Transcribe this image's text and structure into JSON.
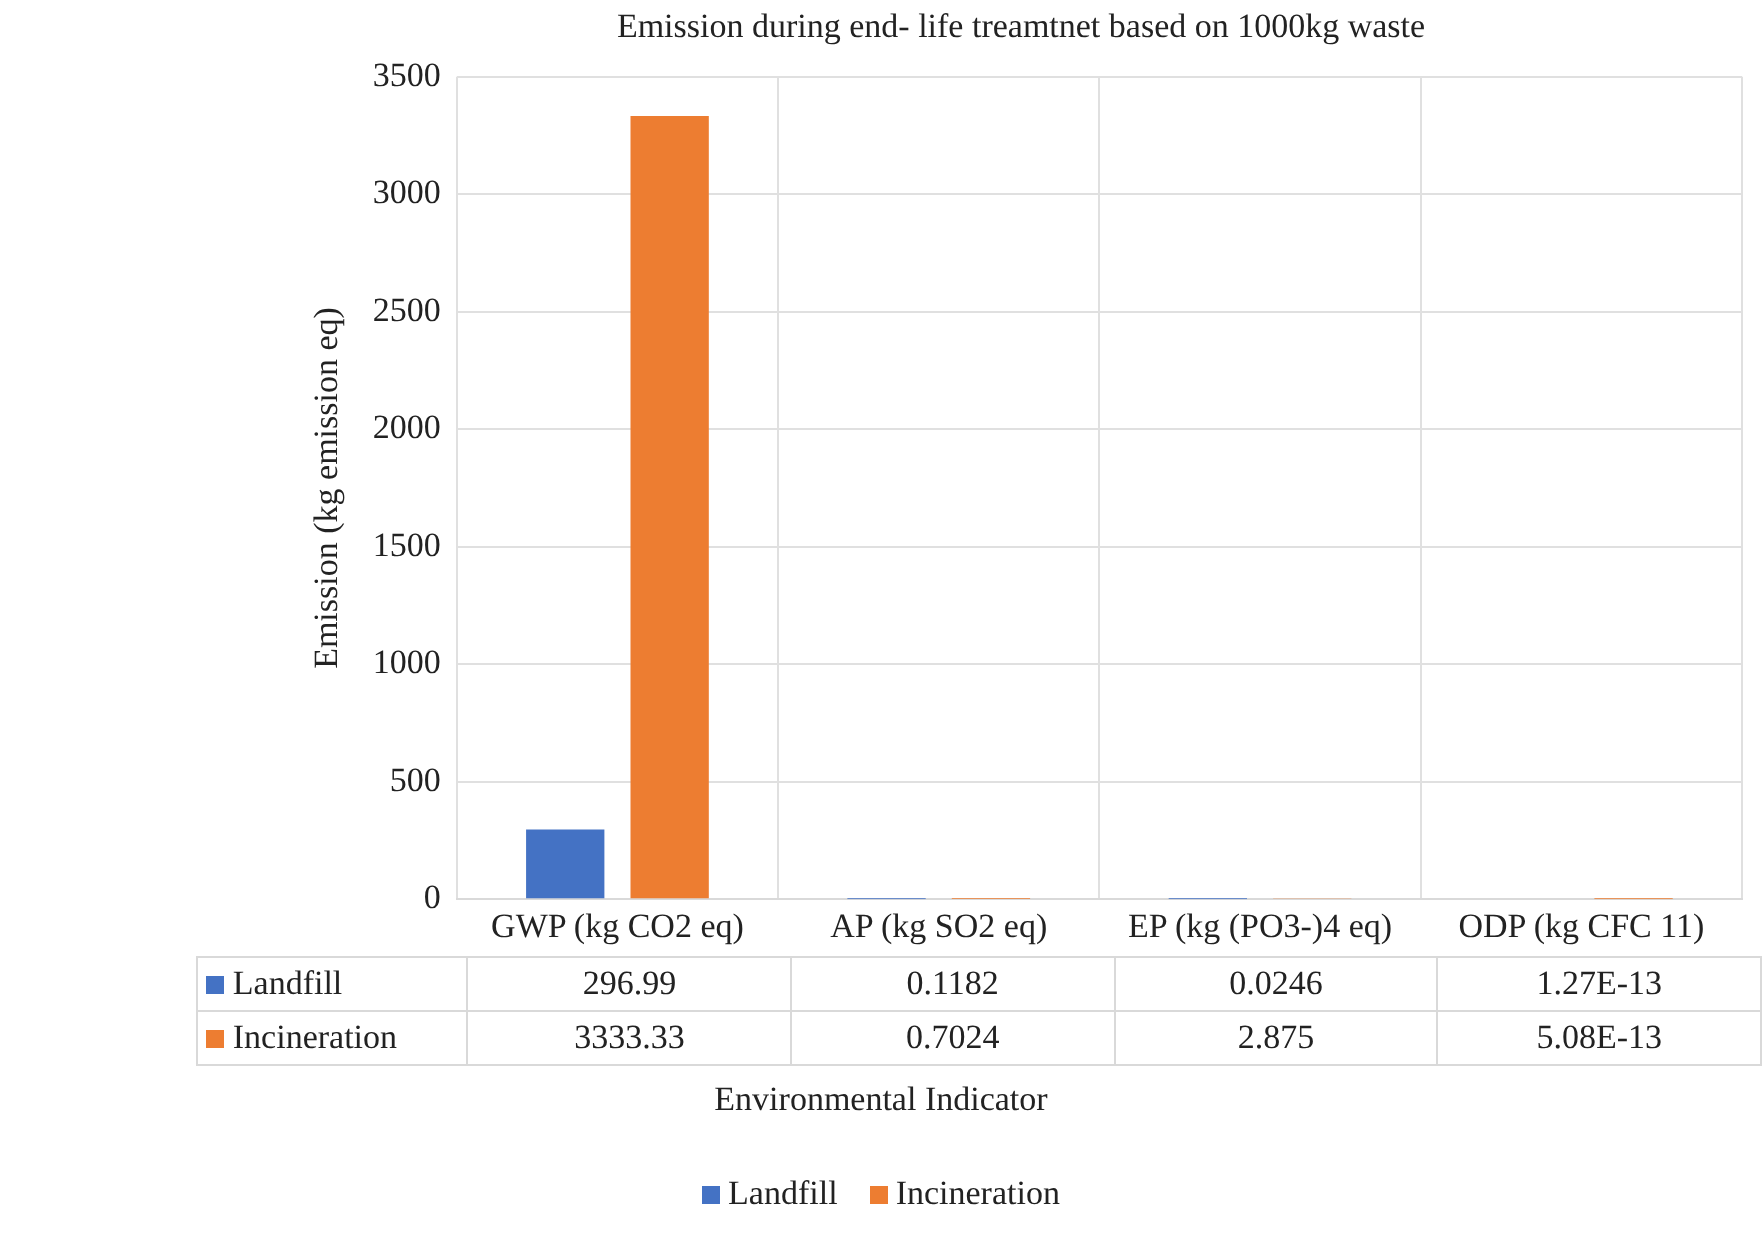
{
  "chart_data": {
    "type": "bar",
    "title": "Emission during end- life treamtnet based on 1000kg waste",
    "xlabel": "Environmental Indicator",
    "ylabel": "Emission (kg emission eq)",
    "categories": [
      "GWP (kg CO2 eq)",
      "AP (kg SO2 eq)",
      "EP (kg (PO3-)4 eq)",
      "ODP (kg CFC 11)"
    ],
    "series": [
      {
        "name": "Landfill",
        "color": "#4472c4",
        "values": [
          296.99,
          0.1182,
          0.0246,
          1.27e-13
        ],
        "value_labels": [
          "296.99",
          "0.1182",
          "0.0246",
          "1.27E-13"
        ]
      },
      {
        "name": "Incineration",
        "color": "#ed7d31",
        "values": [
          3333.33,
          0.7024,
          2.875,
          5.08e-13
        ],
        "value_labels": [
          "3333.33",
          "0.7024",
          "2.875",
          "5.08E-13"
        ]
      }
    ],
    "ylim": [
      0,
      3500
    ],
    "yticks": [
      0,
      500,
      1000,
      1500,
      2000,
      2500,
      3000,
      3500
    ],
    "grid": true,
    "legend": "bottom"
  }
}
